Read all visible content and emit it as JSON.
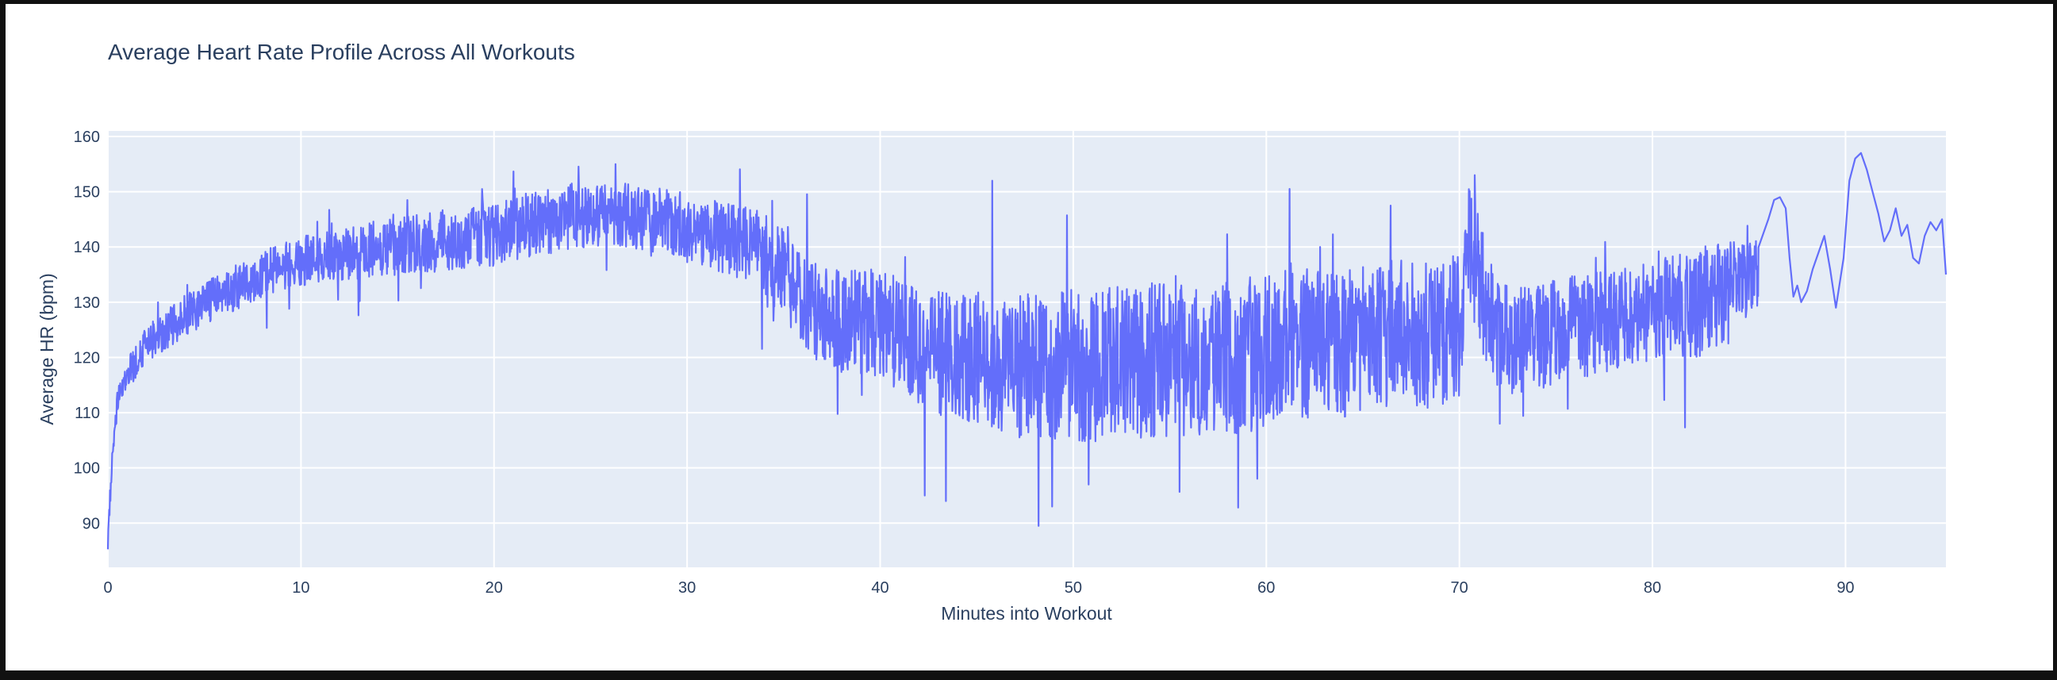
{
  "chart_data": {
    "type": "line",
    "title": "Average Heart Rate Profile Across All Workouts",
    "xlabel": "Minutes into Workout",
    "ylabel": "Average HR (bpm)",
    "xlim": [
      0,
      95.2
    ],
    "ylim": [
      82,
      161
    ],
    "x_ticks": [
      0,
      10,
      20,
      30,
      40,
      50,
      60,
      70,
      80,
      90
    ],
    "y_ticks": [
      90,
      100,
      110,
      120,
      130,
      140,
      150,
      160
    ],
    "grid": true,
    "legend": "none",
    "colors": {
      "line": "#636efa",
      "plot_bg": "#e5ecf6",
      "grid": "#ffffff",
      "text": "#2a3f5f"
    },
    "series": [
      {
        "trend_x": [
          0,
          0.2,
          0.5,
          1,
          2,
          3,
          4,
          5,
          6,
          7,
          8,
          9,
          10,
          12,
          14,
          16,
          18,
          20,
          22,
          24,
          26,
          28,
          30,
          32,
          34,
          35,
          36,
          37,
          38,
          39,
          40,
          41,
          42,
          43,
          44,
          45,
          46,
          47,
          48,
          49,
          50,
          52,
          54,
          56,
          58,
          60,
          61,
          62,
          63,
          64,
          65,
          66,
          67,
          68,
          69,
          70,
          70.5,
          71,
          72,
          73,
          74,
          75,
          76,
          77,
          78,
          79,
          80,
          81,
          82,
          83,
          84,
          85,
          85.5
        ],
        "trend_y": [
          87,
          100,
          112,
          117,
          122,
          125,
          127.5,
          129.5,
          131.5,
          133.5,
          135,
          136.5,
          137.5,
          138.5,
          139.5,
          140.5,
          141.5,
          142.5,
          144,
          145.5,
          146,
          145,
          143.5,
          141.5,
          139,
          135,
          130,
          127.5,
          126.5,
          126.5,
          126,
          124.5,
          122,
          121,
          120.5,
          120,
          119.5,
          118.5,
          118,
          118,
          118.5,
          119,
          119.5,
          119.5,
          120,
          121,
          124,
          122.5,
          121.5,
          122,
          123,
          124,
          125,
          124,
          124,
          126,
          140,
          134,
          124,
          123,
          124,
          124.5,
          125.5,
          126,
          126.5,
          127.5,
          128.5,
          129,
          129.5,
          130.5,
          132.5,
          134.5,
          135
        ],
        "noise_x": [
          0,
          2,
          5,
          10,
          20,
          28,
          32,
          35,
          40,
          45,
          50,
          60,
          70,
          72,
          80,
          83,
          85.5
        ],
        "noise_amp": [
          2,
          3.5,
          4,
          4.5,
          6,
          6,
          6.5,
          8,
          10,
          12,
          14,
          14,
          13,
          10,
          9,
          10,
          6
        ],
        "spikes": [
          [
            26.3,
            155
          ],
          [
            42.3,
            95
          ],
          [
            43.4,
            94
          ],
          [
            45.8,
            152
          ],
          [
            48.2,
            89.5
          ],
          [
            48.9,
            93
          ],
          [
            50.8,
            97
          ],
          [
            61.2,
            150.5
          ],
          [
            70.8,
            153
          ],
          [
            72.1,
            108
          ]
        ],
        "tail_x": [
          85.5,
          86,
          86.3,
          86.6,
          86.9,
          87.1,
          87.3,
          87.5,
          87.7,
          88,
          88.3,
          88.6,
          88.9,
          89.2,
          89.5,
          89.9,
          90.2,
          90.5,
          90.8,
          91.1,
          91.4,
          91.7,
          92,
          92.3,
          92.6,
          92.9,
          93.2,
          93.5,
          93.8,
          94.1,
          94.4,
          94.7,
          95,
          95.2
        ],
        "tail_y": [
          141,
          145,
          148.5,
          149,
          147,
          138,
          131,
          133,
          130,
          132,
          136,
          139,
          142,
          136,
          129,
          138,
          152,
          156,
          157,
          154,
          150,
          146,
          141,
          143,
          147,
          142,
          144,
          138,
          137,
          142,
          144.5,
          143,
          145,
          135
        ]
      }
    ]
  }
}
